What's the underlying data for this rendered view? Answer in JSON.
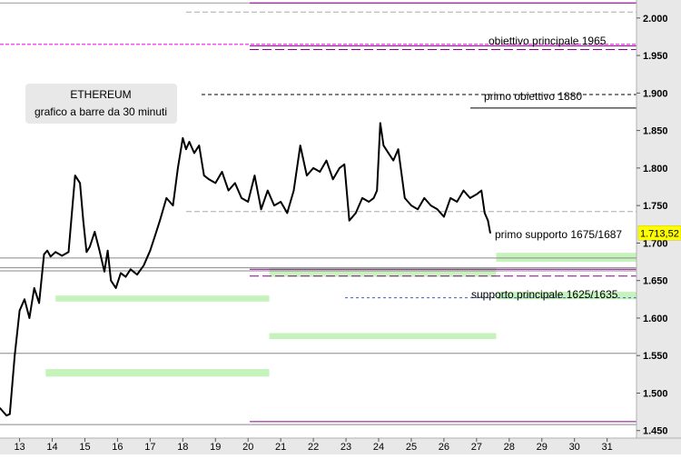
{
  "chart_data": {
    "type": "bar",
    "subtype": "ohlc-30min",
    "title": "ETHEREUM",
    "subtitle": "grafico a barre da 30 minuti",
    "y_ticks": [
      "2.000",
      "1.950",
      "1.900",
      "1.850",
      "1.800",
      "1.750",
      "1.700",
      "1.650",
      "1.600",
      "1.550",
      "1.500",
      "1.450"
    ],
    "y_tick_values": [
      2000,
      1950,
      1900,
      1850,
      1800,
      1750,
      1700,
      1650,
      1600,
      1550,
      1500,
      1450
    ],
    "x_ticks": [
      "13",
      "14",
      "15",
      "16",
      "17",
      "18",
      "19",
      "20",
      "21",
      "22",
      "23",
      "24",
      "25",
      "26",
      "27",
      "28",
      "29",
      "30",
      "31"
    ],
    "ylim": [
      1440,
      2024
    ],
    "xlim": [
      12.4,
      31.9
    ],
    "last_price_label": "1.713,52",
    "last_price": 1713.52,
    "colors": {
      "price": "#000000",
      "zone": "#c6f3bc",
      "resistance": "#8b008b",
      "target": "#ff00ff",
      "support_dash": "#3a5fcd",
      "axis_bg": "#e8e8e8",
      "price_label_bg": "#ffff00"
    },
    "annotations": [
      {
        "text": "obiettivo principale  1965",
        "value": 1965
      },
      {
        "text": "primo obiettivo 1880",
        "value": 1880
      },
      {
        "text": "primo supporto 1675/1687",
        "value": 1687
      },
      {
        "text": "supporto principale 1625/1635",
        "value": 1625
      }
    ],
    "horizontal_levels": [
      {
        "value": 2020,
        "style": "grey"
      },
      {
        "value": 2020,
        "style": "purple"
      },
      {
        "value": 2008,
        "style": "grey-dash"
      },
      {
        "value": 1965,
        "style": "magenta-dash"
      },
      {
        "value": 1963,
        "style": "purple"
      },
      {
        "value": 1958,
        "style": "purple-dash"
      },
      {
        "value": 1898,
        "style": "black-dash"
      },
      {
        "value": 1880,
        "style": "black-solid"
      },
      {
        "value": 1742,
        "style": "grey-dash"
      },
      {
        "value": 1680,
        "style": "grey-double"
      },
      {
        "value": 1667,
        "style": "grey-double"
      },
      {
        "value": 1665,
        "style": "purple"
      },
      {
        "value": 1663,
        "style": "grey-double"
      },
      {
        "value": 1656,
        "style": "purple-dash"
      },
      {
        "value": 1627,
        "style": "blue-dash"
      },
      {
        "value": 1553,
        "style": "grey-double"
      },
      {
        "value": 1462,
        "style": "purple"
      },
      {
        "value": 1458,
        "style": "grey-double"
      }
    ],
    "zones": [
      {
        "from": 14.1,
        "to": 20.65,
        "low": 1622,
        "high": 1630
      },
      {
        "from": 13.8,
        "to": 20.65,
        "low": 1522,
        "high": 1532
      },
      {
        "from": 20.65,
        "to": 27.6,
        "low": 1572,
        "high": 1580
      },
      {
        "from": 20.65,
        "to": 27.6,
        "low": 1655,
        "high": 1667
      },
      {
        "from": 27.6,
        "to": 31.9,
        "low": 1675,
        "high": 1687
      },
      {
        "from": 27.6,
        "to": 31.9,
        "low": 1625,
        "high": 1635
      }
    ],
    "series": [
      {
        "name": "",
        "x": [
          12.4,
          12.5,
          12.6,
          12.7,
          12.85,
          13.0,
          13.15,
          13.3,
          13.45,
          13.6,
          13.75,
          13.85,
          13.95,
          14.1,
          14.3,
          14.5,
          14.7,
          14.85,
          14.95,
          15.05,
          15.15,
          15.3,
          15.45,
          15.6,
          15.7,
          15.8,
          15.95,
          16.1,
          16.25,
          16.4,
          16.6,
          16.8,
          17.0,
          17.15,
          17.3,
          17.5,
          17.7,
          17.85,
          18.0,
          18.1,
          18.2,
          18.35,
          18.5,
          18.65,
          18.8,
          19.0,
          19.2,
          19.4,
          19.6,
          19.8,
          20.0,
          20.2,
          20.4,
          20.6,
          20.8,
          21.0,
          21.2,
          21.4,
          21.6,
          21.8,
          22.0,
          22.2,
          22.4,
          22.6,
          22.8,
          22.95,
          23.1,
          23.3,
          23.5,
          23.7,
          23.85,
          23.95,
          24.05,
          24.15,
          24.3,
          24.45,
          24.6,
          24.8,
          25.0,
          25.2,
          25.4,
          25.6,
          25.8,
          26.0,
          26.2,
          26.4,
          26.6,
          26.8,
          27.0,
          27.15,
          27.25,
          27.35,
          27.42
        ],
        "y": [
          1480,
          1475,
          1470,
          1472,
          1550,
          1610,
          1625,
          1600,
          1640,
          1620,
          1685,
          1690,
          1682,
          1688,
          1683,
          1688,
          1790,
          1780,
          1730,
          1688,
          1695,
          1715,
          1690,
          1662,
          1690,
          1650,
          1640,
          1660,
          1655,
          1665,
          1658,
          1670,
          1690,
          1710,
          1730,
          1760,
          1750,
          1800,
          1840,
          1825,
          1835,
          1820,
          1830,
          1790,
          1785,
          1780,
          1795,
          1770,
          1780,
          1760,
          1755,
          1790,
          1745,
          1770,
          1750,
          1755,
          1740,
          1770,
          1830,
          1790,
          1800,
          1795,
          1810,
          1785,
          1800,
          1805,
          1730,
          1740,
          1760,
          1755,
          1760,
          1770,
          1860,
          1830,
          1820,
          1810,
          1825,
          1760,
          1750,
          1745,
          1760,
          1750,
          1745,
          1735,
          1760,
          1755,
          1770,
          1760,
          1765,
          1770,
          1740,
          1730,
          1713.52
        ]
      }
    ]
  }
}
